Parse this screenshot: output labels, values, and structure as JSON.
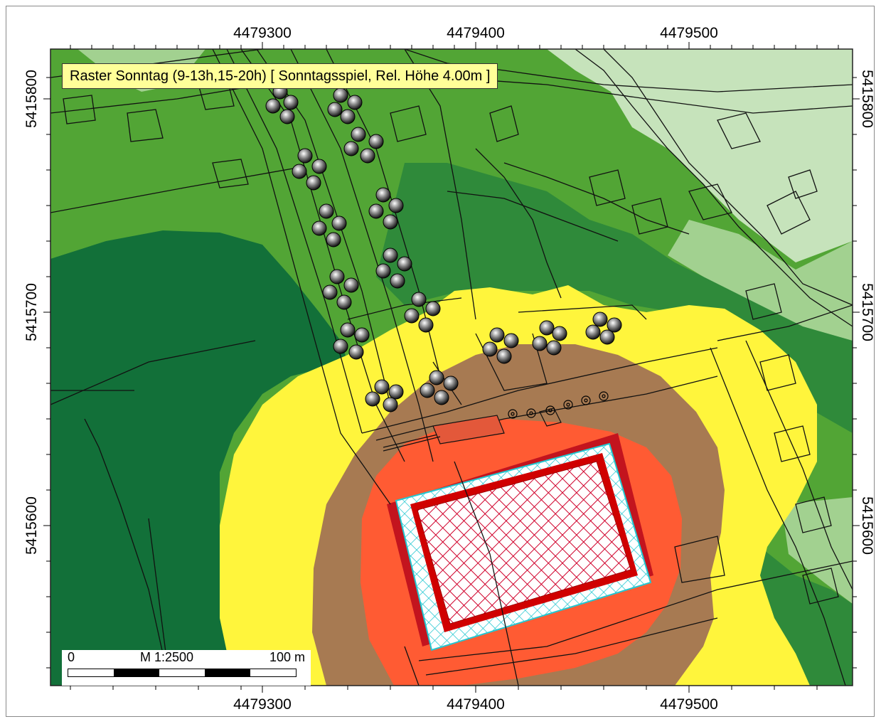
{
  "map": {
    "title": "Raster Sonntag (9-13h,15-20h)  [ Sonntagsspiel, Rel. Höhe  4.00m ]",
    "x_ticks_top": [
      "4479300",
      "4479400",
      "4479500"
    ],
    "x_ticks_bottom": [
      "4479300",
      "4479400",
      "4479500"
    ],
    "y_ticks_left": [
      "5415800",
      "5415700",
      "5415600"
    ],
    "y_ticks_right": [
      "5415800",
      "5415700",
      "5415600"
    ],
    "scale": {
      "start_label": "0",
      "ratio_label": "M 1:2500",
      "end_label": "100 m"
    },
    "colors": {
      "very_light_green": "#c6e3bb",
      "light_green": "#a2d190",
      "mid_green": "#52a535",
      "dark_green": "#2f8a3a",
      "darkest_green": "#127039",
      "yellow": "#fff53c",
      "brown": "#a77a52",
      "orange": "#ff5b33",
      "dark_red": "#c3141e",
      "pitch_outline": "#d00000",
      "hatch_cyan": "#24c7d1"
    },
    "icons": [
      "tree-symbol",
      "lamp-post-symbol",
      "parcel-line",
      "building-outline"
    ]
  }
}
